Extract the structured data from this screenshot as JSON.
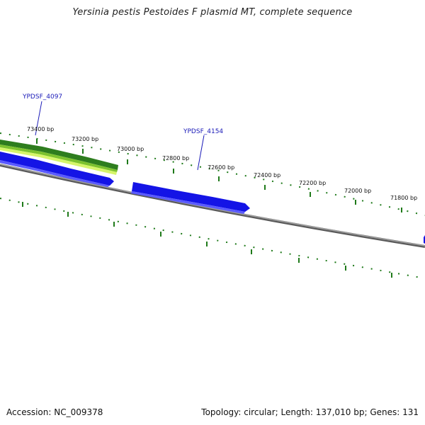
{
  "title": "Yersinia pestis Pestoides F plasmid MT, complete sequence",
  "footer": {
    "accession": "Accession: NC_009378",
    "summary": "Topology: circular; Length: 137,010 bp; Genes: 131"
  },
  "ruler": {
    "labels": [
      "73400 bp",
      "73200 bp",
      "73000 bp",
      "72800 bp",
      "72600 bp",
      "72400 bp",
      "72200 bp",
      "72000 bp",
      "71800 bp"
    ]
  },
  "gene_labels": [
    "YPDSF_4097",
    "YPDSF_4154"
  ],
  "colors": {
    "backbone": "#7a7a7a",
    "gene_blue": "#1414e6",
    "gene_blue_light": "#5a5aff",
    "feature_dark_green": "#2e7d1e",
    "feature_mid_green": "#7cc22e",
    "feature_light_green": "#d6f56a",
    "tick_green": "#1f7a1a",
    "label_blue": "#1a1ab8"
  }
}
